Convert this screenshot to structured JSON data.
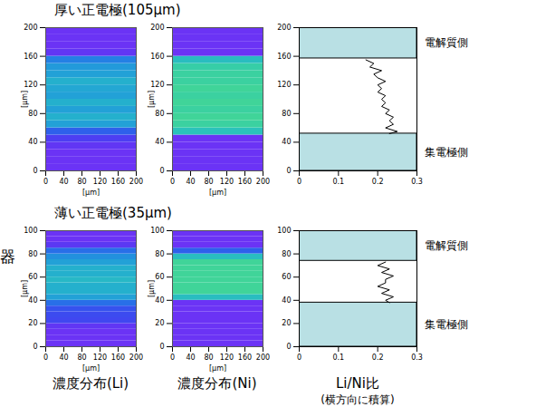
{
  "chart_data": [
    {
      "type": "heatmap",
      "row": 0,
      "title": "濃度分布(Li)",
      "xlabel": "[μm]",
      "ylabel": "[μm]",
      "xlim": [
        0,
        200
      ],
      "xticks": [
        0,
        40,
        80,
        120,
        160,
        200
      ],
      "ylim": [
        0,
        200
      ],
      "yticks": [
        0,
        40,
        80,
        120,
        160,
        200
      ],
      "y_edges": [
        0,
        10,
        20,
        30,
        40,
        50,
        60,
        70,
        80,
        90,
        100,
        110,
        120,
        130,
        140,
        150,
        160,
        170,
        180,
        190,
        200
      ],
      "values": [
        0.05,
        0.05,
        0.05,
        0.08,
        0.15,
        0.3,
        0.5,
        0.55,
        0.5,
        0.55,
        0.5,
        0.52,
        0.55,
        0.5,
        0.48,
        0.4,
        0.08,
        0.05,
        0.05,
        0.05
      ],
      "zlim": [
        0,
        1
      ]
    },
    {
      "type": "heatmap",
      "row": 0,
      "title": "濃度分布(Ni)",
      "xlabel": "[μm]",
      "ylabel": "[μm]",
      "xlim": [
        0,
        200
      ],
      "xticks": [
        0,
        40,
        80,
        120,
        160,
        200
      ],
      "ylim": [
        0,
        200
      ],
      "yticks": [
        0,
        40,
        80,
        120,
        160,
        200
      ],
      "y_edges": [
        0,
        10,
        20,
        30,
        40,
        50,
        60,
        70,
        80,
        90,
        100,
        110,
        120,
        130,
        140,
        150,
        160,
        170,
        180,
        190,
        200
      ],
      "values": [
        0.05,
        0.05,
        0.05,
        0.05,
        0.05,
        0.62,
        0.7,
        0.72,
        0.7,
        0.72,
        0.7,
        0.72,
        0.7,
        0.7,
        0.68,
        0.6,
        0.05,
        0.05,
        0.05,
        0.05
      ],
      "zlim": [
        0,
        1
      ]
    },
    {
      "type": "line",
      "row": 0,
      "title": "Li/Ni比",
      "color": "#000000",
      "xlim": [
        0,
        0.3
      ],
      "xticks": [
        0,
        0.1,
        0.2,
        0.3
      ],
      "ylim": [
        0,
        200
      ],
      "yticks": [
        0,
        40,
        80,
        120,
        160,
        200
      ],
      "x": [
        0.17,
        0.19,
        0.18,
        0.21,
        0.19,
        0.2,
        0.22,
        0.2,
        0.21,
        0.2,
        0.22,
        0.21,
        0.22,
        0.21,
        0.23,
        0.22,
        0.24,
        0.23,
        0.24,
        0.22,
        0.25,
        0.23
      ],
      "y": [
        155,
        150,
        145,
        140,
        135,
        130,
        125,
        120,
        115,
        110,
        105,
        100,
        95,
        90,
        85,
        80,
        75,
        70,
        65,
        60,
        55,
        52
      ],
      "regions": [
        {
          "label": "電解質側",
          "y0": 157,
          "y1": 200
        },
        {
          "label": "集電極側",
          "y0": 0,
          "y1": 52
        }
      ]
    },
    {
      "type": "heatmap",
      "row": 1,
      "title": "濃度分布(Li)",
      "xlabel": "[μm]",
      "ylabel": "[μm]",
      "xlim": [
        0,
        200
      ],
      "xticks": [
        0,
        40,
        80,
        120,
        160,
        200
      ],
      "ylim": [
        0,
        100
      ],
      "yticks": [
        0,
        20,
        40,
        60,
        80,
        100
      ],
      "y_edges": [
        0,
        5,
        10,
        15,
        20,
        25,
        30,
        35,
        40,
        45,
        50,
        55,
        60,
        65,
        70,
        75,
        80,
        85,
        90,
        95,
        100
      ],
      "values": [
        0.05,
        0.05,
        0.05,
        0.08,
        0.2,
        0.22,
        0.25,
        0.35,
        0.5,
        0.55,
        0.55,
        0.58,
        0.55,
        0.55,
        0.5,
        0.45,
        0.35,
        0.1,
        0.05,
        0.05
      ],
      "zlim": [
        0,
        1
      ]
    },
    {
      "type": "heatmap",
      "row": 1,
      "title": "濃度分布(Ni)",
      "xlabel": "[μm]",
      "ylabel": "[μm]",
      "xlim": [
        0,
        200
      ],
      "xticks": [
        0,
        40,
        80,
        120,
        160,
        200
      ],
      "ylim": [
        0,
        100
      ],
      "yticks": [
        0,
        20,
        40,
        60,
        80,
        100
      ],
      "y_edges": [
        0,
        5,
        10,
        15,
        20,
        25,
        30,
        35,
        40,
        45,
        50,
        55,
        60,
        65,
        70,
        75,
        80,
        85,
        90,
        95,
        100
      ],
      "values": [
        0.05,
        0.05,
        0.05,
        0.05,
        0.05,
        0.05,
        0.05,
        0.05,
        0.6,
        0.72,
        0.72,
        0.72,
        0.72,
        0.72,
        0.72,
        0.6,
        0.3,
        0.05,
        0.05,
        0.05
      ],
      "zlim": [
        0,
        1
      ]
    },
    {
      "type": "line",
      "row": 1,
      "title": "Li/Ni比",
      "color": "#000000",
      "xlim": [
        0,
        0.3
      ],
      "xticks": [
        0,
        0.1,
        0.2,
        0.3
      ],
      "ylim": [
        0,
        100
      ],
      "yticks": [
        0,
        20,
        40,
        60,
        80,
        100
      ],
      "x": [
        0.22,
        0.2,
        0.23,
        0.21,
        0.24,
        0.22,
        0.22,
        0.2,
        0.23,
        0.21,
        0.24,
        0.22,
        0.23
      ],
      "y": [
        73,
        70,
        67,
        64,
        61,
        58,
        55,
        52,
        49,
        46,
        43,
        40,
        38
      ],
      "regions": [
        {
          "label": "電解質側",
          "y0": 74,
          "y1": 100
        },
        {
          "label": "集電極側",
          "y0": 0,
          "y1": 38
        }
      ]
    }
  ],
  "row_titles": [
    "厚い正電極(105μm)",
    "薄い正電極(35μm)"
  ],
  "column_note": "(横方向に積算)",
  "edge_text": "器"
}
